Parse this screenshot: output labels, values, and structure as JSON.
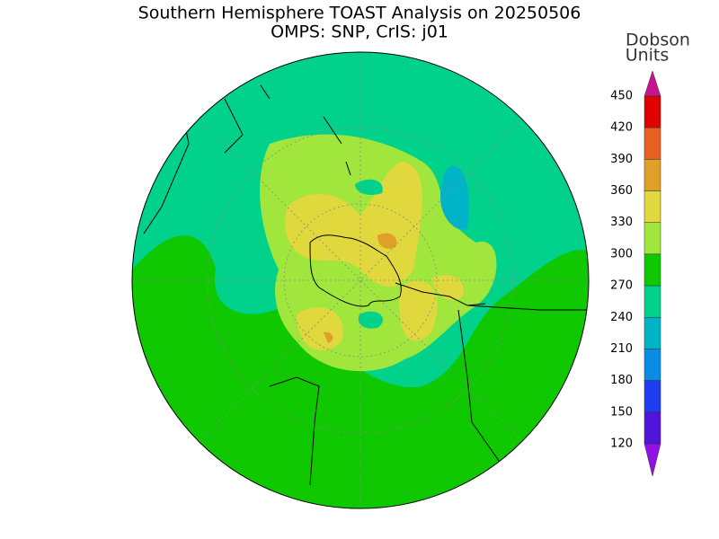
{
  "title": [
    "Southern Hemisphere TOAST Analysis on 20250506",
    "OMPS: SNP, CrIS: j01"
  ],
  "colorbar": {
    "label": [
      "Dobson",
      "Units"
    ],
    "ticks": [
      450,
      420,
      390,
      360,
      330,
      300,
      270,
      240,
      210,
      180,
      150,
      120
    ],
    "colors": [
      "#c8148c",
      "#e00000",
      "#e86020",
      "#e0a028",
      "#e0d83c",
      "#a0e63c",
      "#10c800",
      "#00d28c",
      "#00b4c8",
      "#0a8ce6",
      "#1e3cf0",
      "#5014dc",
      "#9010e6"
    ]
  }
}
